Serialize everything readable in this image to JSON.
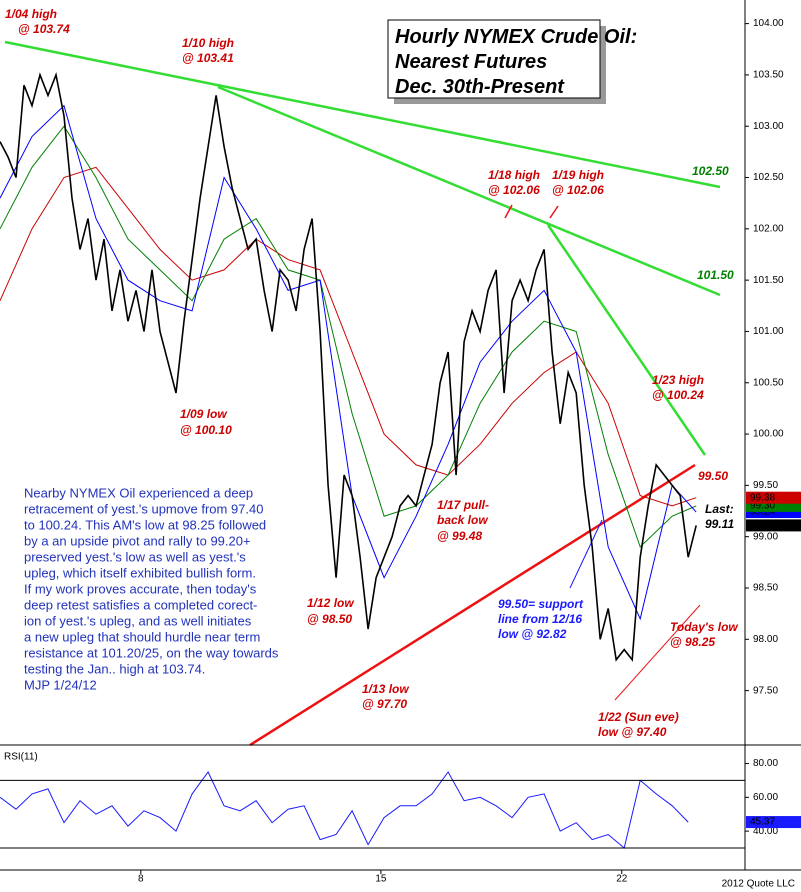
{
  "chart_data": [
    {
      "type": "line",
      "title_lines": [
        "Hourly NYMEX Crude Oil:",
        "Nearest Futures",
        "Dec. 30th-Present"
      ],
      "xlim": [
        0,
        93.1
      ],
      "ylim": [
        96.97,
        104.23
      ],
      "yticks": [
        {
          "value": 97.5,
          "label": "97.50"
        },
        {
          "value": 98,
          "label": "98.00"
        },
        {
          "value": 98.5,
          "label": "98.50"
        },
        {
          "value": 99,
          "label": "99.00"
        },
        {
          "value": 99.5,
          "label": "99.50"
        },
        {
          "value": 100,
          "label": "100.00"
        },
        {
          "value": 100.5,
          "label": "100.50"
        },
        {
          "value": 101,
          "label": "101.00"
        },
        {
          "value": 101.5,
          "label": "101.50"
        },
        {
          "value": 102,
          "label": "102.00"
        },
        {
          "value": 102.5,
          "label": "102.50"
        },
        {
          "value": 103,
          "label": "103.00"
        },
        {
          "value": 103.5,
          "label": "103.50"
        },
        {
          "value": 104,
          "label": "104.00"
        }
      ],
      "x": [
        0,
        1,
        2,
        3,
        4,
        5,
        6,
        7,
        8,
        9,
        10,
        11,
        12,
        13,
        14,
        15,
        16,
        17,
        18,
        19,
        20,
        21,
        22,
        23,
        24,
        25,
        26,
        27,
        28,
        29,
        30,
        31,
        32,
        33,
        34,
        35,
        36,
        37,
        38,
        39,
        40,
        41,
        42,
        43,
        44,
        45,
        46,
        47,
        48,
        49,
        50,
        51,
        52,
        53,
        54,
        55,
        56,
        57,
        58,
        59,
        60,
        61,
        62,
        63,
        64,
        65,
        66,
        67,
        68,
        69,
        70,
        71,
        72,
        73,
        74,
        75,
        76,
        77,
        78,
        79,
        80,
        81,
        82,
        83,
        84,
        85,
        86,
        87
      ],
      "series": [
        {
          "name": "Price",
          "color": "#000000",
          "last_label": "99.11",
          "values": [
            102.85,
            102.7,
            102.5,
            103.4,
            103.2,
            103.5,
            103.3,
            103.5,
            103.1,
            102.3,
            101.8,
            102.1,
            101.5,
            101.9,
            101.2,
            101.6,
            101.1,
            101.4,
            101.0,
            101.6,
            101.0,
            100.7,
            100.4,
            101.1,
            101.7,
            102.3,
            102.8,
            103.3,
            102.8,
            102.4,
            102.1,
            101.8,
            101.9,
            101.4,
            101.0,
            101.6,
            101.5,
            101.2,
            101.8,
            102.1,
            101.0,
            99.5,
            98.6,
            99.6,
            99.4,
            98.8,
            98.1,
            98.6,
            98.8,
            99.0,
            99.3,
            99.4,
            99.3,
            99.6,
            99.9,
            100.5,
            100.8,
            99.6,
            100.9,
            101.2,
            101.0,
            101.4,
            101.6,
            100.4,
            101.3,
            101.5,
            101.3,
            101.6,
            101.8,
            100.8,
            100.1,
            100.6,
            100.4,
            99.5,
            98.9,
            98.0,
            98.3,
            97.8,
            97.9,
            97.8,
            98.8,
            99.3,
            99.7,
            99.6,
            99.5,
            99.4,
            98.8,
            99.11
          ]
        },
        {
          "name": "Fast MA",
          "color": "#0000ff",
          "last_label": "99.24",
          "x": [
            0,
            4,
            8,
            12,
            16,
            20,
            24,
            28,
            32,
            36,
            40,
            44,
            48,
            52,
            56,
            60,
            64,
            68,
            72,
            76,
            80,
            84,
            87
          ],
          "values": [
            102.3,
            102.9,
            103.2,
            102.1,
            101.5,
            101.3,
            101.2,
            102.5,
            102.0,
            101.4,
            101.5,
            99.4,
            98.6,
            99.2,
            99.9,
            100.7,
            101.1,
            101.4,
            100.8,
            98.9,
            98.2,
            99.5,
            99.24
          ]
        },
        {
          "name": "Medium MA",
          "color": "#008000",
          "last_label": "99.30",
          "x": [
            0,
            4,
            8,
            12,
            16,
            20,
            24,
            28,
            32,
            36,
            40,
            44,
            48,
            52,
            56,
            60,
            64,
            68,
            72,
            76,
            80,
            84,
            87
          ],
          "values": [
            102.0,
            102.6,
            103.0,
            102.5,
            101.9,
            101.6,
            101.3,
            101.9,
            102.1,
            101.6,
            101.5,
            100.2,
            99.2,
            99.3,
            99.6,
            100.3,
            100.8,
            101.1,
            101.0,
            99.8,
            98.9,
            99.2,
            99.3
          ]
        },
        {
          "name": "Slow MA",
          "color": "#cc0000",
          "last_label": "99.38",
          "x": [
            0,
            4,
            8,
            12,
            16,
            20,
            24,
            28,
            32,
            36,
            40,
            44,
            48,
            52,
            56,
            60,
            64,
            68,
            72,
            76,
            80,
            84,
            87
          ],
          "values": [
            101.3,
            102.0,
            102.5,
            102.6,
            102.2,
            101.8,
            101.5,
            101.6,
            101.9,
            101.7,
            101.6,
            100.8,
            100.0,
            99.7,
            99.6,
            99.9,
            100.3,
            100.6,
            100.8,
            100.3,
            99.4,
            99.3,
            99.38
          ]
        }
      ],
      "annotations": [
        {
          "text": "1/04 high",
          "color": "#cc0000"
        },
        {
          "text": "@ 103.74",
          "color": "#cc0000"
        },
        {
          "text": "1/10 high",
          "color": "#cc0000"
        },
        {
          "text": "@ 103.41",
          "color": "#cc0000"
        },
        {
          "text": "1/18 high",
          "color": "#cc0000"
        },
        {
          "text": "@ 102.06",
          "color": "#cc0000"
        },
        {
          "text": "1/19 high",
          "color": "#cc0000"
        },
        {
          "text": "@ 102.06",
          "color": "#cc0000"
        },
        {
          "text": "102.50",
          "color": "#008000"
        },
        {
          "text": "101.50",
          "color": "#008000"
        },
        {
          "text": "1/23 high",
          "color": "#cc0000"
        },
        {
          "text": "@ 100.24",
          "color": "#cc0000"
        },
        {
          "text": "99.50",
          "color": "#cc0000"
        },
        {
          "text": "1/09 low",
          "color": "#cc0000"
        },
        {
          "text": "@ 100.10",
          "color": "#cc0000"
        },
        {
          "text": "1/17 pull-",
          "color": "#cc0000"
        },
        {
          "text": "back low",
          "color": "#cc0000"
        },
        {
          "text": "@ 99.48",
          "color": "#cc0000"
        },
        {
          "text": "1/12 low",
          "color": "#cc0000"
        },
        {
          "text": "@ 98.50",
          "color": "#cc0000"
        },
        {
          "text": "1/13 low",
          "color": "#cc0000"
        },
        {
          "text": "@ 97.70",
          "color": "#cc0000"
        },
        {
          "text": "99.50= support",
          "color": "#1a1aff"
        },
        {
          "text": "line from 12/16",
          "color": "#1a1aff"
        },
        {
          "text": "low @ 92.82",
          "color": "#1a1aff"
        },
        {
          "text": "Today's low",
          "color": "#cc0000"
        },
        {
          "text": "@ 98.25",
          "color": "#cc0000"
        },
        {
          "text": "1/22 (Sun eve)",
          "color": "#cc0000"
        },
        {
          "text": "low @ 97.40",
          "color": "#cc0000"
        },
        {
          "text": "Last:",
          "color": "#000000"
        },
        {
          "text": "99.11",
          "color": "#000000"
        }
      ],
      "commentary": [
        "Nearby NYMEX Oil experienced a deep",
        "retracement of yest.'s upmove from 97.40",
        "to 100.24. This AM's low at 98.25 followed",
        "by a an upside pivot and rally to 99.20+",
        "preserved yest.'s low as well as yest.'s",
        "upleg, which itself exhibited bullish form.",
        "If my work proves accurate, then today's",
        "deep retest satisfies a completed corect-",
        "ion of yest.'s upleg, and as well initiates",
        "a new upleg that should hurdle near term",
        "resistance at 101.20/25, on the way towards",
        "testing the Jan.. high at 103.74.",
        "MJP 1/24/12"
      ]
    },
    {
      "type": "line",
      "title": "RSI(11)",
      "source": "2012 Quote LLC",
      "xlim": [
        0,
        93.1
      ],
      "xticks": [
        {
          "value": 17.6,
          "label": "8"
        },
        {
          "value": 47.6,
          "label": "15"
        },
        {
          "value": 77.7,
          "label": "22"
        }
      ],
      "ylim": [
        17,
        88
      ],
      "yticks": [
        {
          "value": 40,
          "label": "40.00"
        },
        {
          "value": 60,
          "label": "60.00"
        },
        {
          "value": 80,
          "label": "80.00"
        }
      ],
      "hlines": [
        30,
        70
      ],
      "x": [
        0,
        2,
        4,
        6,
        8,
        10,
        12,
        14,
        16,
        18,
        20,
        22,
        24,
        26,
        28,
        30,
        32,
        34,
        36,
        38,
        40,
        42,
        44,
        46,
        48,
        50,
        52,
        54,
        56,
        58,
        60,
        62,
        64,
        66,
        68,
        70,
        72,
        74,
        76,
        78,
        80,
        82,
        84,
        86
      ],
      "series": [
        {
          "name": "RSI",
          "color": "#1a1aff",
          "last_label": "45.37",
          "values": [
            60,
            53,
            62,
            65,
            45,
            58,
            50,
            55,
            43,
            52,
            48,
            40,
            62,
            75,
            55,
            52,
            58,
            45,
            53,
            55,
            35,
            38,
            52,
            32,
            48,
            55,
            55,
            62,
            75,
            58,
            60,
            55,
            48,
            60,
            62,
            40,
            45,
            35,
            38,
            30,
            70,
            62,
            55,
            45.37
          ]
        }
      ]
    }
  ]
}
